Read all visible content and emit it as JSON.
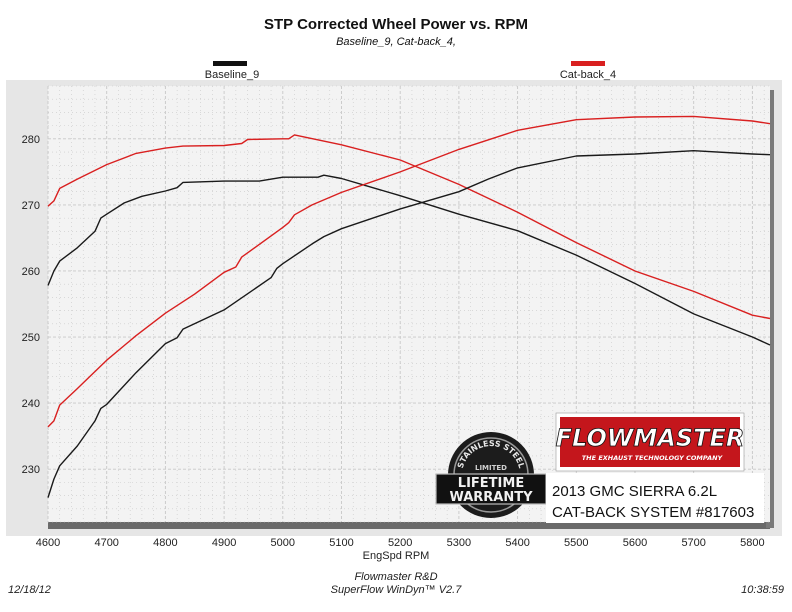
{
  "chart_data": {
    "type": "line",
    "title": "STP Corrected Wheel Power vs. RPM",
    "subtitle": "Baseline_9, Cat-back_4,",
    "xlabel": "EngSpd  RPM",
    "ylabel": "",
    "xlim": [
      4600,
      5830
    ],
    "ylim": [
      222,
      288
    ],
    "x_ticks": [
      4600,
      4700,
      4800,
      4900,
      5000,
      5100,
      5200,
      5300,
      5400,
      5500,
      5600,
      5700,
      5800
    ],
    "y_ticks": [
      230,
      240,
      250,
      260,
      270,
      280
    ],
    "grid": true,
    "legend": [
      "Baseline_9",
      "Cat-back_4"
    ],
    "series": [
      {
        "name": "Baseline_9",
        "group": "power",
        "color": "#1a1a1a",
        "x": [
          4600,
          4610,
          4620,
          4650,
          4680,
          4690,
          4700,
          4730,
          4760,
          4800,
          4820,
          4830,
          4900,
          4960,
          5000,
          5060,
          5070,
          5100,
          5200,
          5300,
          5400,
          5500,
          5600,
          5700,
          5800,
          5830
        ],
        "y": [
          257.8,
          260.0,
          261.5,
          263.5,
          266.0,
          268.0,
          268.6,
          270.3,
          271.3,
          272.1,
          272.6,
          273.4,
          273.6,
          273.6,
          274.2,
          274.2,
          274.5,
          274.0,
          271.4,
          268.6,
          266.1,
          262.4,
          258.1,
          253.5,
          250.0,
          248.8
        ]
      },
      {
        "name": "Cat-back_4",
        "group": "power",
        "color": "#d92020",
        "x": [
          4600,
          4610,
          4620,
          4650,
          4700,
          4750,
          4800,
          4830,
          4900,
          4930,
          4940,
          5000,
          5010,
          5020,
          5100,
          5200,
          5300,
          5400,
          5500,
          5600,
          5700,
          5800,
          5830
        ],
        "y": [
          269.8,
          270.6,
          272.5,
          273.9,
          276.1,
          277.8,
          278.6,
          278.9,
          279.0,
          279.3,
          279.9,
          280.0,
          280.0,
          280.6,
          279.1,
          276.8,
          273.1,
          268.9,
          264.3,
          260.0,
          256.9,
          253.3,
          252.8
        ]
      },
      {
        "name": "Baseline_9",
        "group": "torque",
        "color": "#1a1a1a",
        "x": [
          4600,
          4610,
          4620,
          4650,
          4680,
          4690,
          4700,
          4750,
          4800,
          4820,
          4830,
          4900,
          4980,
          4990,
          5000,
          5050,
          5070,
          5100,
          5200,
          5300,
          5350,
          5400,
          5500,
          5600,
          5700,
          5800,
          5830
        ],
        "y": [
          225.7,
          228.5,
          230.5,
          233.5,
          237.3,
          239.2,
          239.8,
          244.6,
          249.0,
          249.9,
          251.2,
          254.1,
          259.0,
          260.4,
          261.1,
          264.1,
          265.2,
          266.4,
          269.4,
          272.0,
          273.9,
          275.6,
          277.4,
          277.7,
          278.2,
          277.7,
          277.6
        ]
      },
      {
        "name": "Cat-back_4",
        "group": "torque",
        "color": "#d92020",
        "x": [
          4600,
          4610,
          4620,
          4650,
          4700,
          4750,
          4800,
          4850,
          4900,
          4920,
          4930,
          5000,
          5010,
          5020,
          5050,
          5100,
          5200,
          5300,
          5400,
          5500,
          5600,
          5700,
          5800,
          5830
        ],
        "y": [
          236.4,
          237.3,
          239.7,
          242.2,
          246.5,
          250.2,
          253.6,
          256.5,
          259.8,
          260.6,
          262.1,
          266.6,
          267.3,
          268.5,
          270.0,
          271.9,
          275.0,
          278.4,
          281.3,
          282.9,
          283.3,
          283.4,
          282.7,
          282.3
        ]
      }
    ]
  },
  "badges": {
    "brand_name": "FLOWMASTER",
    "brand_tagline": "THE EXHAUST TECHNOLOGY COMPANY",
    "warranty_arc": "STAINLESS STEEL",
    "warranty_mid": "LIMITED",
    "warranty_line1": "LIFETIME",
    "warranty_line2": "WARRANTY",
    "product_line1": "2013 GMC SIERRA 6.2L",
    "product_line2": "CAT-BACK SYSTEM #817603"
  },
  "footer": {
    "date": "12/18/12",
    "time": "10:38:59",
    "line1": "Flowmaster R&D",
    "line2": "SuperFlow WinDyn™ V2.7"
  },
  "colors": {
    "plot_bg": "#f3f3f3",
    "frame_bg": "#e6e6e6",
    "grid": "#c8c8c8",
    "brand_red": "#c4161c"
  }
}
